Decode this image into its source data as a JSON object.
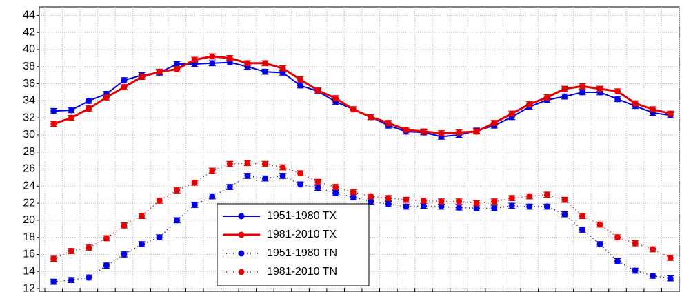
{
  "chart_data": {
    "type": "line",
    "categories": [
      null,
      null,
      null,
      null,
      null,
      null,
      null,
      null,
      null,
      null,
      null,
      null,
      null,
      null,
      null,
      null,
      null,
      null,
      null,
      null,
      null,
      null,
      null,
      null,
      null,
      null,
      null,
      null,
      null,
      null,
      null,
      null,
      null,
      null,
      null,
      null
    ],
    "ylim": [
      11.6,
      45
    ],
    "yticks": [
      12,
      14,
      16,
      18,
      20,
      22,
      24,
      26,
      28,
      30,
      32,
      34,
      36,
      38,
      40,
      42,
      44
    ],
    "grid": true,
    "legend": "bottom-center",
    "series": [
      {
        "name": "1951-1980 TX",
        "color": "#0000dd",
        "style": "solid",
        "error": 0.3,
        "values": [
          32.8,
          32.9,
          34.0,
          34.8,
          36.4,
          37.0,
          37.3,
          38.3,
          38.3,
          38.4,
          38.5,
          38.0,
          37.4,
          37.3,
          35.8,
          35.1,
          33.9,
          33.0,
          32.1,
          31.1,
          30.4,
          30.3,
          29.8,
          30.0,
          30.5,
          31.1,
          32.1,
          33.3,
          34.1,
          34.5,
          35.0,
          35.0,
          34.2,
          33.4,
          32.6,
          32.3
        ]
      },
      {
        "name": "1981-2010 TX",
        "color": "#e00000",
        "style": "solid",
        "error": 0.3,
        "values": [
          31.3,
          32.0,
          33.1,
          34.4,
          35.6,
          36.8,
          37.4,
          37.7,
          38.8,
          39.2,
          39.0,
          38.4,
          38.4,
          37.8,
          36.5,
          35.2,
          34.3,
          33.0,
          32.1,
          31.4,
          30.6,
          30.4,
          30.2,
          30.3,
          30.4,
          31.4,
          32.5,
          33.6,
          34.4,
          35.4,
          35.7,
          35.4,
          35.1,
          33.7,
          33.0,
          32.5
        ]
      },
      {
        "name": "1951-1980 TN",
        "color": "#0000dd",
        "style": "dotted",
        "error": 0.3,
        "values": [
          12.8,
          13.0,
          13.3,
          14.7,
          16.0,
          17.2,
          18.0,
          20.0,
          21.8,
          22.8,
          23.9,
          25.2,
          24.9,
          25.2,
          24.2,
          23.8,
          23.2,
          22.7,
          22.2,
          21.9,
          21.6,
          21.7,
          21.6,
          21.5,
          21.4,
          21.4,
          21.7,
          21.6,
          21.6,
          20.7,
          18.9,
          17.2,
          15.2,
          14.1,
          13.5,
          13.2
        ]
      },
      {
        "name": "1981-2010 TN",
        "color": "#e00000",
        "style": "dotted",
        "error": 0.3,
        "values": [
          15.5,
          16.4,
          16.8,
          17.9,
          19.4,
          20.5,
          22.3,
          23.5,
          24.4,
          25.8,
          26.6,
          26.7,
          26.6,
          26.2,
          25.5,
          24.5,
          23.9,
          23.3,
          22.8,
          22.6,
          22.4,
          22.3,
          22.2,
          22.2,
          22.0,
          22.2,
          22.6,
          22.8,
          23.0,
          22.4,
          20.5,
          19.5,
          18.0,
          17.3,
          16.6,
          15.6
        ]
      }
    ]
  }
}
